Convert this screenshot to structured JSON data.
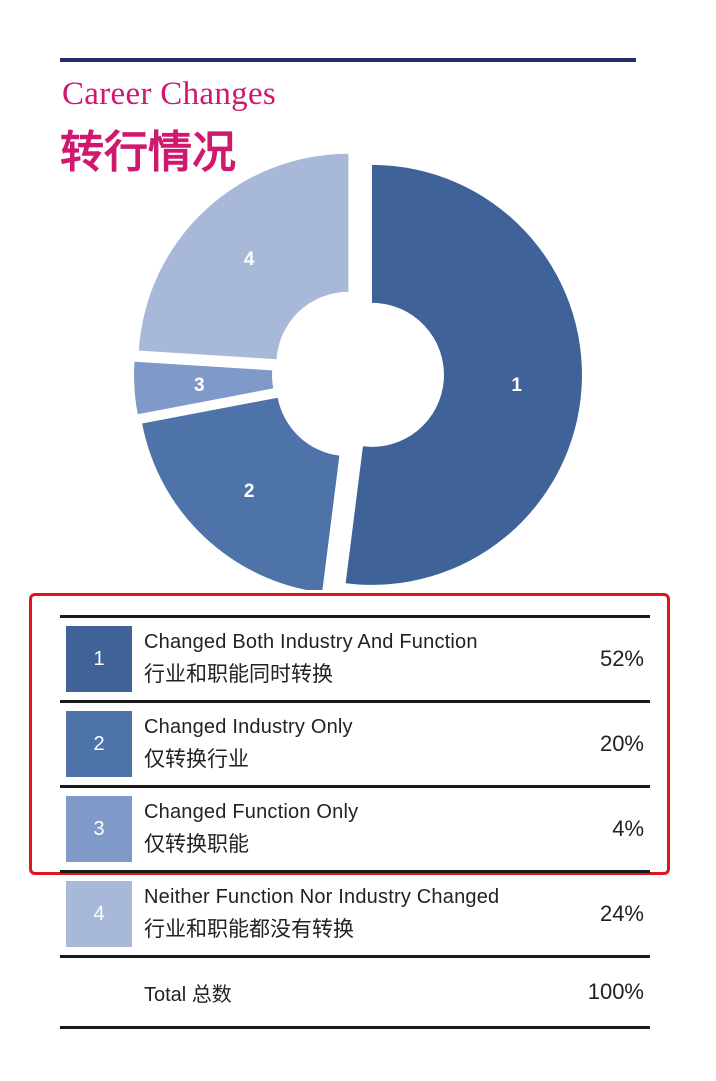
{
  "title_en": "Career Changes",
  "title_zh": "转行情况",
  "chart_data": {
    "type": "pie",
    "variant": "donut, exploded slices",
    "categories": [
      "1",
      "2",
      "3",
      "4"
    ],
    "values": [
      52,
      20,
      4,
      24
    ],
    "unit": "%",
    "colors": [
      "#3f6399",
      "#4e73a9",
      "#7f99c8",
      "#a8b8d8"
    ]
  },
  "legend": {
    "rows": [
      {
        "num": "1",
        "en": "Changed Both Industry And Function",
        "zh": "行业和职能同时转换",
        "pct": "52%",
        "color": "#3f6399"
      },
      {
        "num": "2",
        "en": "Changed Industry Only",
        "zh": "仅转换行业",
        "pct": "20%",
        "color": "#4e73a9"
      },
      {
        "num": "3",
        "en": "Changed Function Only",
        "zh": "仅转换职能",
        "pct": "4%",
        "color": "#7f99c8"
      },
      {
        "num": "4",
        "en": "Neither Function Nor Industry Changed",
        "zh": "行业和职能都没有转换",
        "pct": "24%",
        "color": "#a8b8d8"
      }
    ],
    "total_en": "Total",
    "total_zh": "总数",
    "total_pct": "100%"
  },
  "highlight_color": "#e0141e"
}
